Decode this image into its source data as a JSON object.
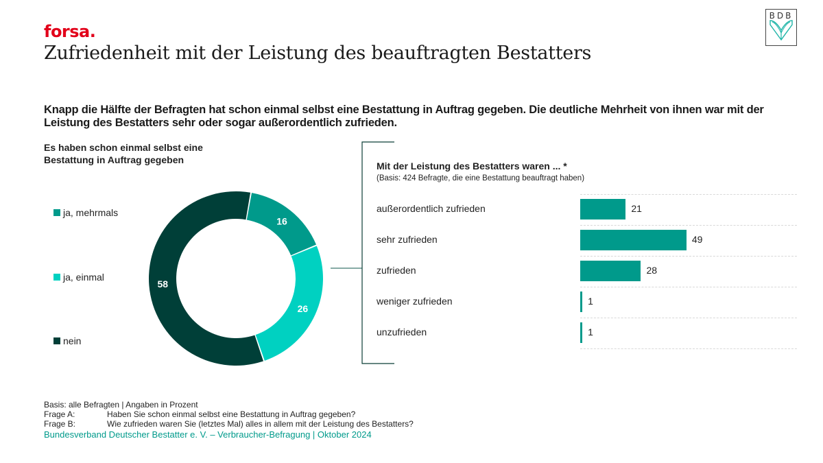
{
  "header": {
    "brand": "forsa.",
    "title": "Zufriedenheit mit der Leistung des beauftragten Bestatters",
    "logo_text": "BDB"
  },
  "headline": "Knapp die Hälfte der Befragten hat schon einmal selbst eine Bestattung in Auftrag gegeben. Die deutliche Mehrheit von ihnen war mit der Leistung des Bestatters sehr oder sogar außerordentlich zufrieden.",
  "colors": {
    "brand_red": "#e2001a",
    "dark_green": "#003f38",
    "teal": "#009a8b",
    "turquoise": "#00d1c1",
    "source_teal": "#009a8b"
  },
  "chart_data": [
    {
      "type": "pie",
      "variant": "donut",
      "title": "Es haben schon einmal selbst eine Bestattung in Auftrag gegeben",
      "categories": [
        "ja, mehrmals",
        "ja, einmal",
        "nein"
      ],
      "values": [
        16,
        26,
        58
      ],
      "colors": [
        "#009a8b",
        "#00d1c1",
        "#003f38"
      ],
      "unit": "Prozent",
      "legend": "left"
    },
    {
      "type": "bar",
      "orientation": "horizontal",
      "title": "Mit der Leistung des Bestatters waren ... *",
      "subtitle": "(Basis: 424 Befragte, die eine Bestattung beauftragt haben)",
      "categories": [
        "außerordentlich zufrieden",
        "sehr zufrieden",
        "zufrieden",
        "weniger zufrieden",
        "unzufrieden"
      ],
      "values": [
        21,
        49,
        28,
        1,
        1
      ],
      "color": "#009a8b",
      "unit": "Prozent",
      "grid": true
    }
  ],
  "footer": {
    "basis": "Basis: alle Befragten | Angaben in Prozent",
    "questions": [
      {
        "key": "Frage A:",
        "text": "Haben Sie schon einmal selbst eine Bestattung in Auftrag gegeben?"
      },
      {
        "key": "Frage B:",
        "text": "Wie zufrieden waren Sie (letztes Mal) alles in allem mit der Leistung des Bestatters?"
      }
    ],
    "source": "Bundesverband Deutscher Bestatter e. V. – Verbraucher-Befragung | Oktober 2024"
  }
}
